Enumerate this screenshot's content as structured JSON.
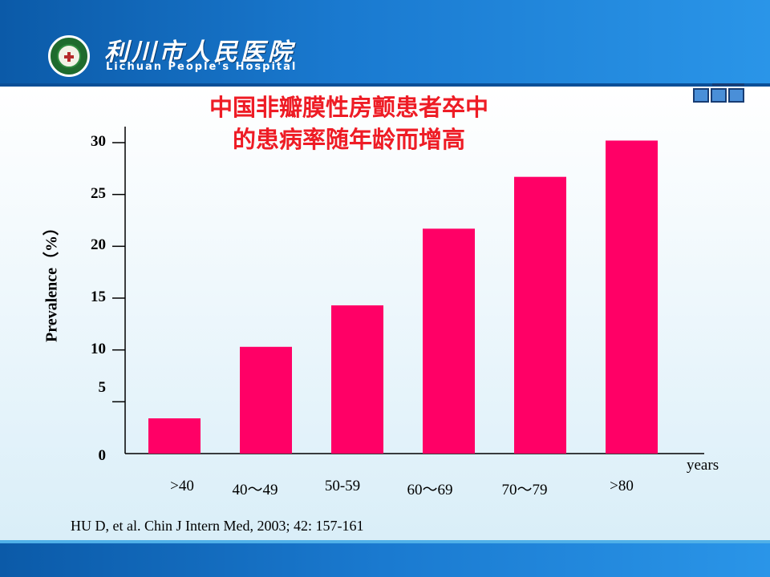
{
  "header": {
    "hospital_name_cn": "利川市人民医院",
    "hospital_name_en": "Lichuan People's Hospital"
  },
  "slide": {
    "title_line1": "中国非瓣膜性房颤患者卒中",
    "title_line2": "的患病率随年龄而增高",
    "citation": "HU D, et al. Chin J Intern Med, 2003; 42: 157-161"
  },
  "colors": {
    "bar": "#ff0066",
    "title": "#ee1c25",
    "header_blue": "#1a7ad0"
  },
  "chart_data": {
    "type": "bar",
    "categories": [
      ">40",
      "40～49",
      "50-59",
      "60～69",
      "70～79",
      ">80"
    ],
    "values": [
      3.4,
      10.3,
      14.3,
      21.7,
      26.7,
      30.2
    ],
    "ylabel": "Prevalence（%）",
    "xlabel": "years",
    "yticks": [
      "0",
      "5",
      "10",
      "15",
      "20",
      "25",
      "30"
    ],
    "ylim": [
      0,
      30
    ],
    "grid": false
  }
}
